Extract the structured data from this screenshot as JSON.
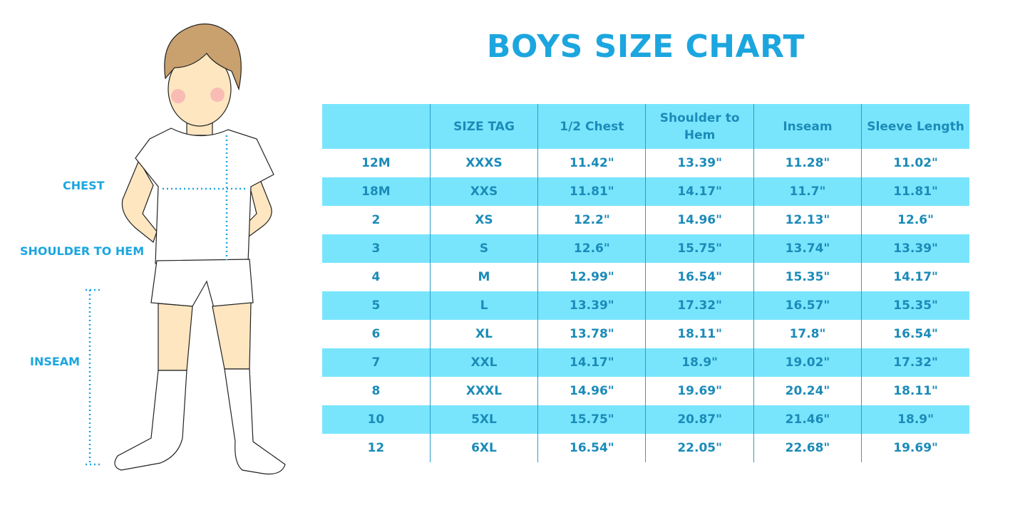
{
  "title": "BOYS SIZE CHART",
  "illustration": {
    "labels": {
      "chest": "CHEST",
      "shoulder_to_hem": "SHOULDER TO HEM",
      "inseam": "INSEAM"
    },
    "colors": {
      "hair": "#c9a16e",
      "skin": "#fde6c0",
      "cheek": "#f7b2b2",
      "measure_line": "#1ca6df"
    }
  },
  "table": {
    "headers": [
      "",
      "SIZE TAG",
      "1/2 Chest",
      "Shoulder to Hem",
      "Inseam",
      "Sleeve Length"
    ],
    "rows": [
      [
        "12M",
        "XXXS",
        "11.42\"",
        "13.39\"",
        "11.28\"",
        "11.02\""
      ],
      [
        "18M",
        "XXS",
        "11.81\"",
        "14.17\"",
        "11.7\"",
        "11.81\""
      ],
      [
        "2",
        "XS",
        "12.2\"",
        "14.96\"",
        "12.13\"",
        "12.6\""
      ],
      [
        "3",
        "S",
        "12.6\"",
        "15.75\"",
        "13.74\"",
        "13.39\""
      ],
      [
        "4",
        "M",
        "12.99\"",
        "16.54\"",
        "15.35\"",
        "14.17\""
      ],
      [
        "5",
        "L",
        "13.39\"",
        "17.32\"",
        "16.57\"",
        "15.35\""
      ],
      [
        "6",
        "XL",
        "13.78\"",
        "18.11\"",
        "17.8\"",
        "16.54\""
      ],
      [
        "7",
        "XXL",
        "14.17\"",
        "18.9\"",
        "19.02\"",
        "17.32\""
      ],
      [
        "8",
        "XXXL",
        "14.96\"",
        "19.69\"",
        "20.24\"",
        "18.11\""
      ],
      [
        "10",
        "5XL",
        "15.75\"",
        "20.87\"",
        "21.46\"",
        "18.9\""
      ],
      [
        "12",
        "6XL",
        "16.54\"",
        "22.05\"",
        "22.68\"",
        "19.69\""
      ]
    ]
  },
  "colors": {
    "title": "#1ca6df",
    "band": "#79e5fd",
    "text": "#1b8bb8"
  }
}
